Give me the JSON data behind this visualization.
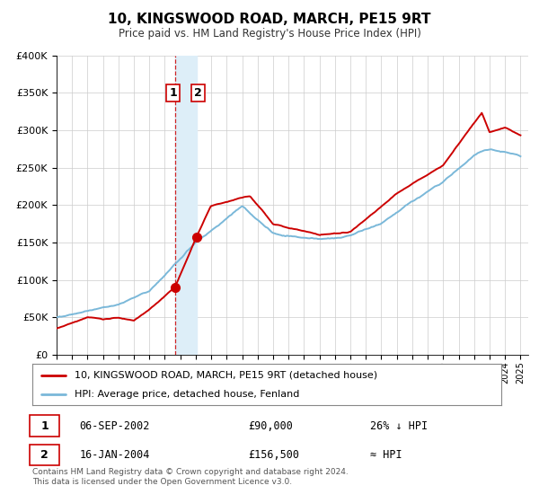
{
  "title": "10, KINGSWOOD ROAD, MARCH, PE15 9RT",
  "subtitle": "Price paid vs. HM Land Registry's House Price Index (HPI)",
  "legend_line1": "10, KINGSWOOD ROAD, MARCH, PE15 9RT (detached house)",
  "legend_line2": "HPI: Average price, detached house, Fenland",
  "transaction1_date": "06-SEP-2002",
  "transaction1_price": "£90,000",
  "transaction1_hpi": "26% ↓ HPI",
  "transaction2_date": "16-JAN-2004",
  "transaction2_price": "£156,500",
  "transaction2_hpi": "≈ HPI",
  "footnote1": "Contains HM Land Registry data © Crown copyright and database right 2024.",
  "footnote2": "This data is licensed under the Open Government Licence v3.0.",
  "hpi_color": "#7ab8d9",
  "price_color": "#cc0000",
  "marker_color": "#cc0000",
  "shading_color": "#ddeef8",
  "dashed_line_color": "#cc0000",
  "background_color": "#ffffff",
  "grid_color": "#cccccc",
  "ylim": [
    0,
    400000
  ],
  "yticks": [
    0,
    50000,
    100000,
    150000,
    200000,
    250000,
    300000,
    350000,
    400000
  ],
  "ytick_labels": [
    "£0",
    "£50K",
    "£100K",
    "£150K",
    "£200K",
    "£250K",
    "£300K",
    "£350K",
    "£400K"
  ],
  "transaction1_x": 2002.67,
  "transaction1_y": 90000,
  "transaction2_x": 2004.04,
  "transaction2_y": 156500,
  "shade_x1": 2002.67,
  "shade_x2": 2004.04,
  "xlim_left": 1995.0,
  "xlim_right": 2025.5
}
